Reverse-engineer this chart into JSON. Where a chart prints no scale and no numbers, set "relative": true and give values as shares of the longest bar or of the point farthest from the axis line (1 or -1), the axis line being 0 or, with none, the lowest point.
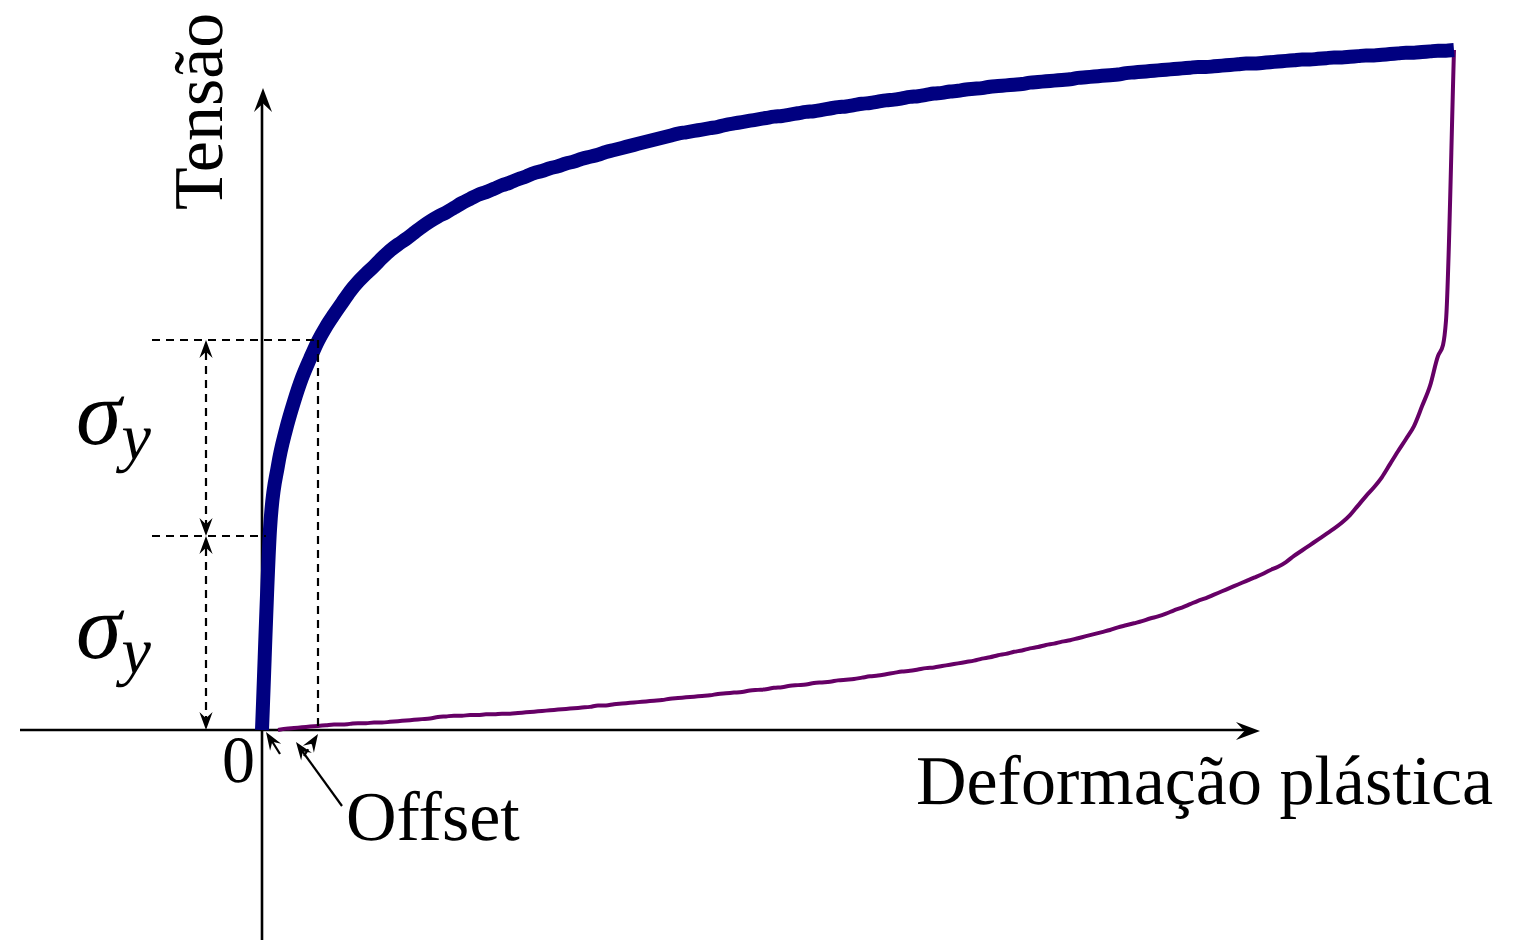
{
  "chart_data": {
    "type": "line",
    "relative": true,
    "xlabel": "Deformação plástica",
    "ylabel": "Tensão",
    "categories": [
      null,
      null,
      null,
      null,
      null,
      null,
      null,
      null,
      null,
      null,
      null,
      null,
      null,
      null,
      null,
      null,
      null,
      null,
      null,
      null,
      null,
      null,
      null,
      null,
      null,
      null,
      null,
      null,
      null,
      null,
      null,
      null,
      null,
      null,
      null,
      null,
      null,
      null,
      null,
      null,
      null,
      null,
      null,
      null,
      null,
      null,
      null,
      null,
      null,
      null,
      null,
      null,
      null,
      null,
      null,
      null,
      null,
      null,
      null,
      null,
      null,
      null,
      null,
      null,
      null,
      null,
      null,
      null,
      null,
      null,
      null,
      null,
      null,
      null,
      null,
      null,
      null,
      null,
      null,
      null,
      null,
      null,
      null,
      null,
      null,
      null,
      null,
      null,
      null,
      null,
      null,
      null,
      null,
      null,
      null,
      null,
      null,
      null,
      null,
      null,
      null,
      null,
      null,
      null,
      null,
      null,
      null,
      null,
      null,
      null,
      null,
      null,
      null,
      null,
      null,
      null,
      null,
      null,
      null,
      null,
      null,
      null,
      null,
      null,
      null,
      null,
      null,
      null,
      null,
      null,
      null,
      null,
      null,
      null,
      null,
      null,
      null,
      null,
      null,
      null,
      null,
      null,
      null,
      null,
      null,
      null,
      null,
      null,
      null,
      null
    ],
    "series": [
      {
        "color": "#000080",
        "values": [
          0,
          0.295,
          0.389,
          0.442,
          0.483,
          0.518,
          0.546,
          0.572,
          0.593,
          0.611,
          0.628,
          0.645,
          0.659,
          0.671,
          0.682,
          0.694,
          0.705,
          0.714,
          0.722,
          0.731,
          0.74,
          0.748,
          0.755,
          0.761,
          0.768,
          0.775,
          0.781,
          0.787,
          0.791,
          0.796,
          0.801,
          0.805,
          0.81,
          0.814,
          0.819,
          0.822,
          0.826,
          0.829,
          0.833,
          0.836,
          0.84,
          0.843,
          0.846,
          0.85,
          0.853,
          0.856,
          0.859,
          0.862,
          0.865,
          0.868,
          0.871,
          0.874,
          0.877,
          0.879,
          0.881,
          0.883,
          0.885,
          0.887,
          0.89,
          0.892,
          0.894,
          0.896,
          0.898,
          0.9,
          0.902,
          0.903,
          0.905,
          0.907,
          0.909,
          0.91,
          0.912,
          0.914,
          0.916,
          0.917,
          0.919,
          0.921,
          0.922,
          0.924,
          0.926,
          0.927,
          0.929,
          0.931,
          0.932,
          0.934,
          0.936,
          0.937,
          0.939,
          0.94,
          0.942,
          0.943,
          0.944,
          0.946,
          0.947,
          0.948,
          0.949,
          0.95,
          0.952,
          0.953,
          0.954,
          0.955,
          0.956,
          0.957,
          0.959,
          0.96,
          0.961,
          0.962,
          0.963,
          0.964,
          0.966,
          0.967,
          0.968,
          0.969,
          0.97,
          0.971,
          0.972,
          0.973,
          0.974,
          0.975,
          0.975,
          0.976,
          0.977,
          0.978,
          0.979,
          0.98,
          0.98,
          0.981,
          0.982,
          0.983,
          0.984,
          0.985,
          0.986,
          0.986,
          0.987,
          0.988,
          0.989,
          0.989,
          0.99,
          0.991,
          0.992,
          0.992,
          0.993,
          0.994,
          0.995,
          0.996,
          0.996,
          0.997,
          0.998,
          0.999,
          0.999,
          1
        ]
      },
      {
        "color": "#660066",
        "values": [
          null,
          null,
          0,
          0.002,
          0.003,
          0.004,
          0.005,
          0.006,
          0.007,
          0.008,
          0.008,
          0.009,
          0.01,
          0.01,
          0.011,
          0.011,
          0.012,
          0.013,
          0.014,
          0.015,
          0.016,
          0.017,
          0.019,
          0.02,
          0.021,
          0.021,
          0.022,
          0.022,
          0.023,
          0.023,
          0.024,
          0.024,
          0.025,
          0.026,
          0.027,
          0.028,
          0.029,
          0.03,
          0.031,
          0.032,
          0.033,
          0.034,
          0.036,
          0.036,
          0.038,
          0.039,
          0.04,
          0.041,
          0.042,
          0.043,
          0.044,
          0.046,
          0.047,
          0.048,
          0.049,
          0.05,
          0.051,
          0.053,
          0.054,
          0.055,
          0.056,
          0.058,
          0.059,
          0.06,
          0.062,
          0.063,
          0.065,
          0.066,
          0.067,
          0.069,
          0.07,
          0.071,
          0.073,
          0.074,
          0.075,
          0.077,
          0.079,
          0.08,
          0.082,
          0.084,
          0.086,
          0.087,
          0.089,
          0.091,
          0.092,
          0.094,
          0.096,
          0.098,
          0.1,
          0.102,
          0.105,
          0.107,
          0.11,
          0.112,
          0.115,
          0.117,
          0.12,
          0.122,
          0.125,
          0.127,
          0.13,
          0.132,
          0.135,
          0.138,
          0.141,
          0.144,
          0.147,
          0.151,
          0.154,
          0.157,
          0.16,
          0.164,
          0.167,
          0.171,
          0.176,
          0.18,
          0.185,
          0.19,
          0.194,
          0.199,
          0.204,
          0.209,
          0.214,
          0.219,
          0.224,
          0.229,
          0.235,
          0.24,
          0.247,
          0.256,
          0.264,
          0.272,
          0.28,
          0.288,
          0.296,
          0.305,
          0.316,
          0.33,
          0.344,
          0.357,
          0.372,
          0.391,
          0.41,
          0.428,
          0.447,
          0.476,
          0.506,
          0.55,
          0.602,
          1
        ]
      }
    ],
    "annotations": [
      "0",
      "σ$_{y}$",
      "σ$_{y}$",
      "Offset"
    ]
  }
}
